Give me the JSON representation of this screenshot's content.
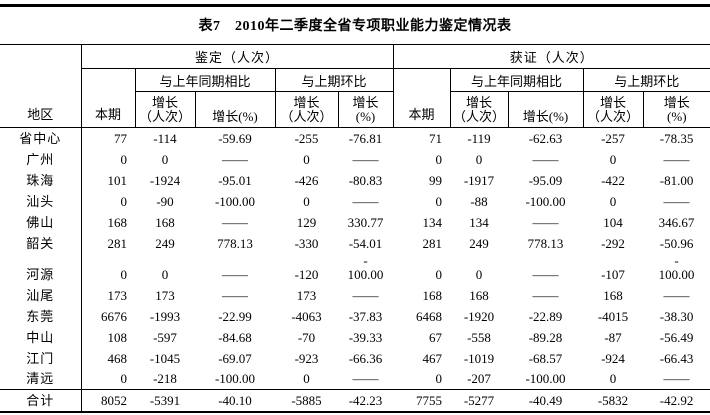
{
  "title": "表7　2010年二季度全省专项职业能力鉴定情况表",
  "table": {
    "headers": {
      "region": "地区",
      "benqi": "本期",
      "yoy": "与上年同期相比",
      "mom": "与上期环比",
      "growth_count": "增长\n（人次）",
      "growth_pct": "增长(%)",
      "growth_pct_stacked": "增长\n(%)"
    },
    "sections": [
      {
        "label": "鉴定（人次）"
      },
      {
        "label": "获证（人次）"
      }
    ],
    "rows": [
      {
        "region": "省中心",
        "values": [
          "77",
          "-114",
          "-59.69",
          "-255",
          "-76.81",
          "71",
          "-119",
          "-62.63",
          "-257",
          "-78.35"
        ]
      },
      {
        "region": "广州",
        "values": [
          "0",
          "0",
          "——",
          "0",
          "——",
          "0",
          "0",
          "——",
          "0",
          "——"
        ]
      },
      {
        "region": "珠海",
        "values": [
          "101",
          "-1924",
          "-95.01",
          "-426",
          "-80.83",
          "99",
          "-1917",
          "-95.09",
          "-422",
          "-81.00"
        ]
      },
      {
        "region": "汕头",
        "values": [
          "0",
          "-90",
          "-100.00",
          "0",
          "——",
          "0",
          "-88",
          "-100.00",
          "0",
          "——"
        ]
      },
      {
        "region": "佛山",
        "values": [
          "168",
          "168",
          "——",
          "129",
          "330.77",
          "134",
          "134",
          "——",
          "104",
          "346.67"
        ]
      },
      {
        "region": "韶关",
        "values": [
          "281",
          "249",
          "778.13",
          "-330",
          "-54.01",
          "281",
          "249",
          "778.13",
          "-292",
          "-50.96"
        ]
      },
      {
        "region": "河源",
        "values": [
          "0",
          "0",
          "——",
          "-120",
          "-\n100.00",
          "0",
          "0",
          "——",
          "-107",
          "-\n100.00"
        ]
      },
      {
        "region": "汕尾",
        "values": [
          "173",
          "173",
          "——",
          "173",
          "——",
          "168",
          "168",
          "——",
          "168",
          "——"
        ]
      },
      {
        "region": "东莞",
        "values": [
          "6676",
          "-1993",
          "-22.99",
          "-4063",
          "-37.83",
          "6468",
          "-1920",
          "-22.89",
          "-4015",
          "-38.30"
        ]
      },
      {
        "region": "中山",
        "values": [
          "108",
          "-597",
          "-84.68",
          "-70",
          "-39.33",
          "67",
          "-558",
          "-89.28",
          "-87",
          "-56.49"
        ]
      },
      {
        "region": "江门",
        "values": [
          "468",
          "-1045",
          "-69.07",
          "-923",
          "-66.36",
          "467",
          "-1019",
          "-68.57",
          "-924",
          "-66.43"
        ]
      },
      {
        "region": "清远",
        "values": [
          "0",
          "-218",
          "-100.00",
          "0",
          "——",
          "0",
          "-207",
          "-100.00",
          "0",
          "——"
        ]
      },
      {
        "region": "合计",
        "is_total": true,
        "values": [
          "8052",
          "-5391",
          "-40.10",
          "-5885",
          "-42.23",
          "7755",
          "-5277",
          "-40.49",
          "-5832",
          "-42.92"
        ]
      }
    ]
  }
}
